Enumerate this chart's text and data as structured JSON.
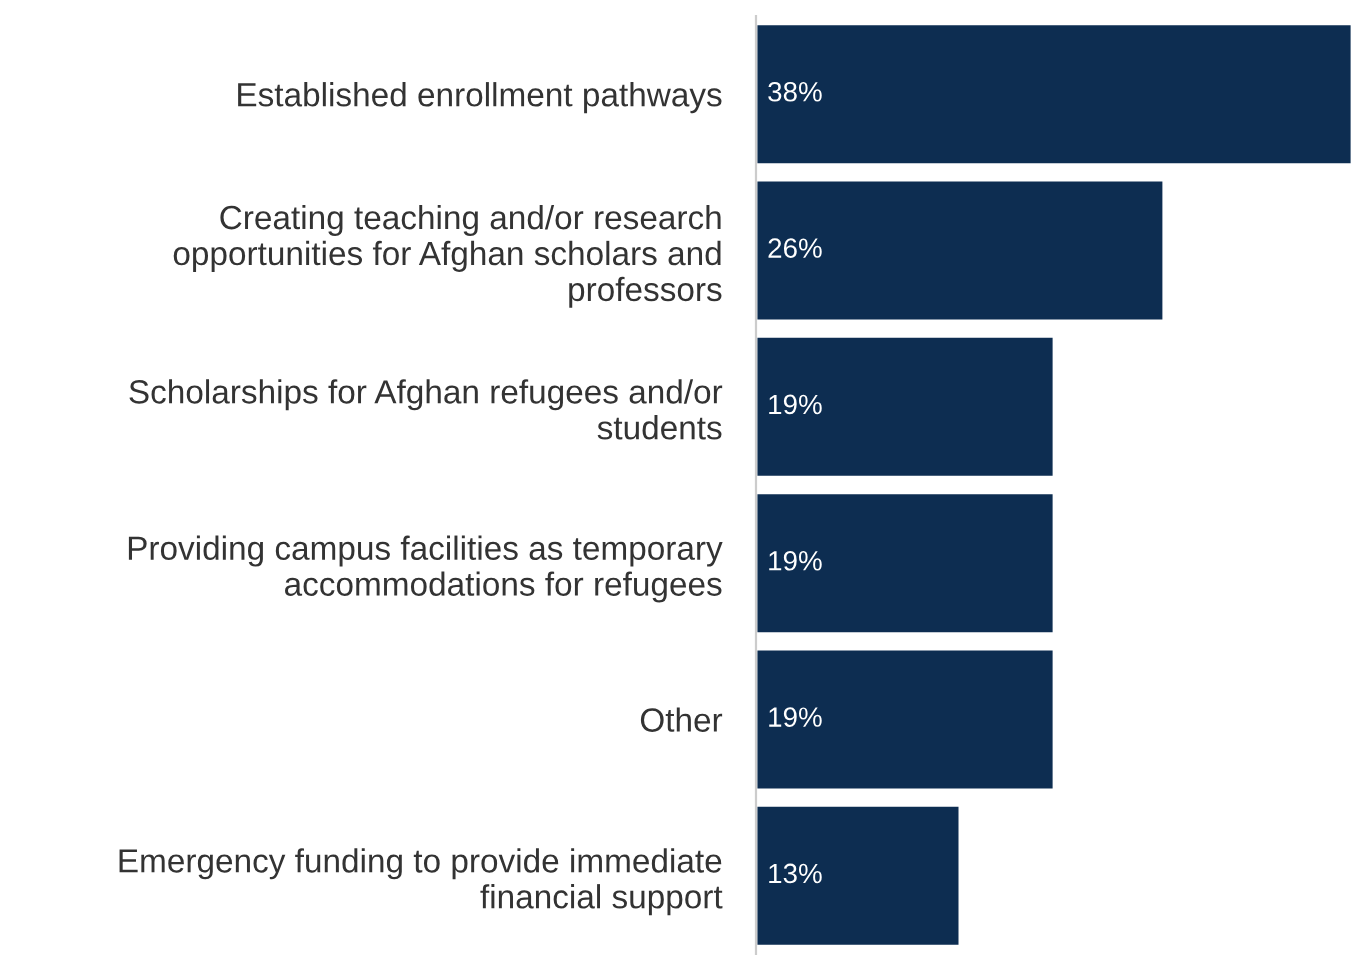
{
  "chart_data": {
    "type": "bar",
    "orientation": "horizontal",
    "categories": [
      "Established enrollment pathways",
      "Creating teaching and/or research\nopportunities for Afghan scholars and\nprofessors",
      "Scholarships for Afghan refugees and/or\nstudents",
      "Providing campus facilities as temporary\naccommodations for refugees",
      "Other",
      "Emergency funding to provide immediate\nfinancial support"
    ],
    "values": [
      38,
      26,
      19,
      19,
      19,
      13
    ],
    "value_labels": [
      "38%",
      "26%",
      "19%",
      "19%",
      "19%",
      "13%"
    ],
    "color": "#0d2d51",
    "tick_labels": "y",
    "grid": false,
    "legend": false
  }
}
